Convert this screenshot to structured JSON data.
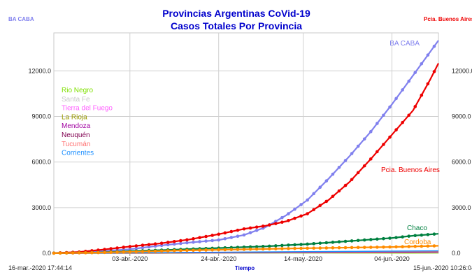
{
  "chart_data": {
    "type": "line",
    "title": "Provincias Argentinas CoVid-19",
    "subtitle": "Casos Totales Por Provincia",
    "xlabel": "Tiempo",
    "ylim": [
      0,
      14500
    ],
    "y_ticks": [
      "0.0",
      "3000.0",
      "6000.0",
      "9000.0",
      "12000.0"
    ],
    "y_tick_values": [
      0,
      3000,
      6000,
      9000,
      12000
    ],
    "x_tick_labels": [
      "03-abr.-2020",
      "24-abr.-2020",
      "14-may.-2020",
      "04-jun.-2020"
    ],
    "x_tick_days": [
      18,
      39,
      59,
      80
    ],
    "x_range_days": [
      0,
      91
    ],
    "start_label": "16-mar.-2020 17:44:14",
    "end_label": "15-jun.-2020 10:26:04",
    "left_corner_label": "BA CABA",
    "right_corner_label": "Pcia. Buenos Aires",
    "legend": [
      {
        "name": "Rio Negro",
        "color": "#7fe000"
      },
      {
        "name": "Santa Fe",
        "color": "#c8c8c8"
      },
      {
        "name": "Tierra del Fuego",
        "color": "#ff60ff"
      },
      {
        "name": "La Rioja",
        "color": "#9a9a00"
      },
      {
        "name": "Mendoza",
        "color": "#a000a0"
      },
      {
        "name": "Neuquén",
        "color": "#800050"
      },
      {
        "name": "Tucumán",
        "color": "#ff7070"
      },
      {
        "name": "Corrientes",
        "color": "#1e90ff"
      }
    ],
    "series": [
      {
        "name": "BA CABA",
        "color": "#8080ee",
        "points": [
          [
            0,
            10
          ],
          [
            6,
            60
          ],
          [
            12,
            150
          ],
          [
            18,
            260
          ],
          [
            25,
            500
          ],
          [
            32,
            700
          ],
          [
            39,
            870
          ],
          [
            45,
            1200
          ],
          [
            50,
            1700
          ],
          [
            55,
            2500
          ],
          [
            60,
            3500
          ],
          [
            65,
            4900
          ],
          [
            70,
            6400
          ],
          [
            75,
            8000
          ],
          [
            80,
            9800
          ],
          [
            85,
            11700
          ],
          [
            91,
            14000
          ]
        ]
      },
      {
        "name": "Pcia. Buenos Aires",
        "color": "#ee0000",
        "points": [
          [
            0,
            10
          ],
          [
            6,
            80
          ],
          [
            12,
            250
          ],
          [
            18,
            440
          ],
          [
            25,
            640
          ],
          [
            32,
            900
          ],
          [
            39,
            1250
          ],
          [
            45,
            1600
          ],
          [
            50,
            1800
          ],
          [
            55,
            2100
          ],
          [
            60,
            2600
          ],
          [
            65,
            3500
          ],
          [
            70,
            4700
          ],
          [
            75,
            6200
          ],
          [
            80,
            7800
          ],
          [
            85,
            9400
          ],
          [
            89,
            11400
          ],
          [
            91,
            12500
          ]
        ]
      },
      {
        "name": "Chaco",
        "color": "#008040",
        "points": [
          [
            0,
            5
          ],
          [
            10,
            50
          ],
          [
            20,
            150
          ],
          [
            30,
            250
          ],
          [
            40,
            350
          ],
          [
            50,
            450
          ],
          [
            60,
            600
          ],
          [
            70,
            800
          ],
          [
            80,
            1000
          ],
          [
            85,
            1150
          ],
          [
            91,
            1280
          ]
        ]
      },
      {
        "name": "Cordoba",
        "color": "#ff8c00",
        "points": [
          [
            0,
            5
          ],
          [
            10,
            40
          ],
          [
            20,
            100
          ],
          [
            30,
            180
          ],
          [
            40,
            230
          ],
          [
            50,
            280
          ],
          [
            60,
            330
          ],
          [
            70,
            370
          ],
          [
            80,
            410
          ],
          [
            91,
            490
          ]
        ]
      }
    ]
  }
}
